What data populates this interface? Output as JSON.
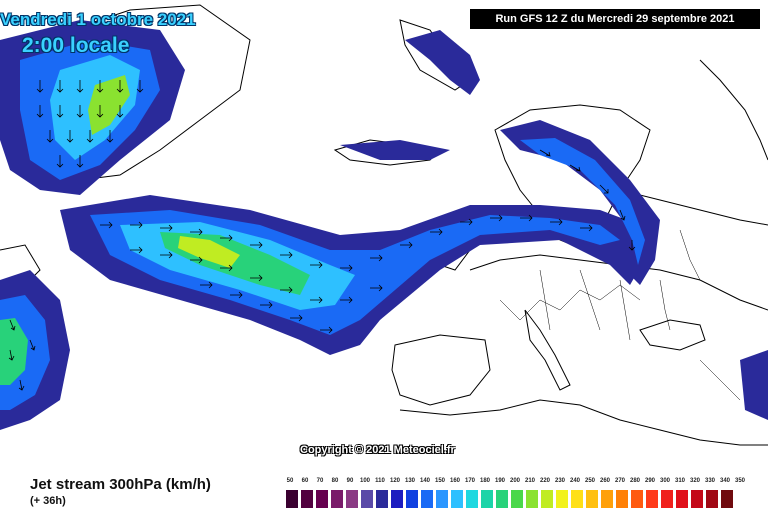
{
  "header": {
    "date": "Vendredi 1 octobre 2021",
    "time": "2:00 locale",
    "run": "Run GFS 12 Z du Mercredi 29 septembre 2021"
  },
  "map": {
    "copyright": "Copyright © 2021 Meteociel.fr"
  },
  "legend": {
    "title": "Jet stream 300hPa (km/h)",
    "subtitle": "(+ 36h)",
    "scale": [
      {
        "label": "50",
        "color": "#3a0030"
      },
      {
        "label": "60",
        "color": "#52003f"
      },
      {
        "label": "70",
        "color": "#66004f"
      },
      {
        "label": "80",
        "color": "#7a1b6a"
      },
      {
        "label": "90",
        "color": "#8a3a84"
      },
      {
        "label": "100",
        "color": "#5a4aa8"
      },
      {
        "label": "110",
        "color": "#2a2a9a"
      },
      {
        "label": "120",
        "color": "#1c1cc0"
      },
      {
        "label": "130",
        "color": "#1040e0"
      },
      {
        "label": "140",
        "color": "#1a6af5"
      },
      {
        "label": "150",
        "color": "#2a96ff"
      },
      {
        "label": "160",
        "color": "#2ec0ff"
      },
      {
        "label": "170",
        "color": "#1fd8e0"
      },
      {
        "label": "180",
        "color": "#1cd4a8"
      },
      {
        "label": "190",
        "color": "#28d27a"
      },
      {
        "label": "200",
        "color": "#4ad84a"
      },
      {
        "label": "210",
        "color": "#8ae230"
      },
      {
        "label": "220",
        "color": "#c0ec22"
      },
      {
        "label": "230",
        "color": "#f2f21c"
      },
      {
        "label": "240",
        "color": "#ffe018"
      },
      {
        "label": "250",
        "color": "#ffc010"
      },
      {
        "label": "260",
        "color": "#ffa00a"
      },
      {
        "label": "270",
        "color": "#ff8006"
      },
      {
        "label": "280",
        "color": "#ff5a10"
      },
      {
        "label": "290",
        "color": "#ff3a1a"
      },
      {
        "label": "300",
        "color": "#f0201c"
      },
      {
        "label": "310",
        "color": "#e0101a"
      },
      {
        "label": "320",
        "color": "#c40818"
      },
      {
        "label": "330",
        "color": "#a00814"
      },
      {
        "label": "340",
        "color": "#700a0e"
      },
      {
        "label": "350",
        "color": "#000000"
      }
    ]
  }
}
